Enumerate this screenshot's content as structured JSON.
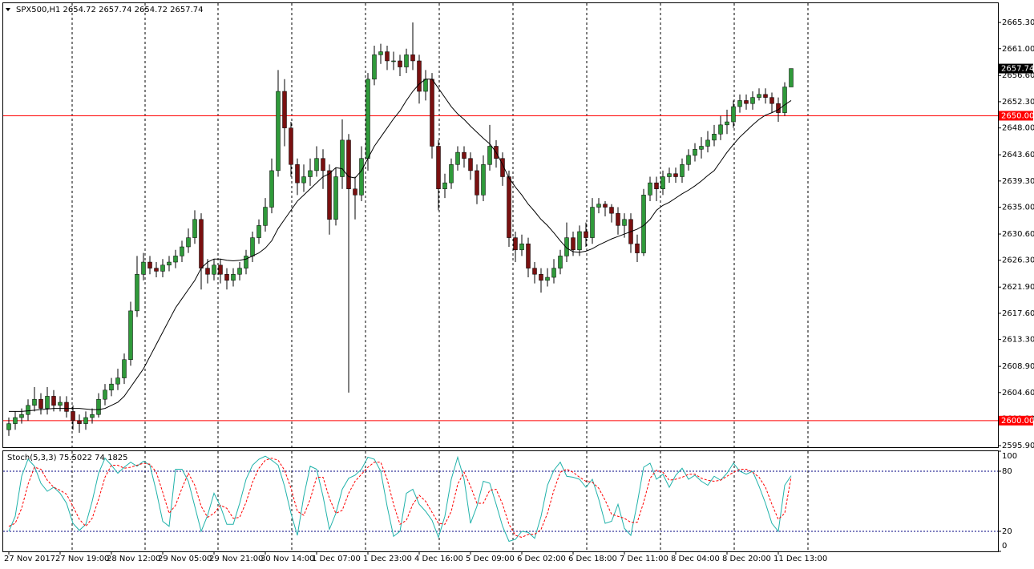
{
  "chart_data": [
    {
      "type": "candlestick",
      "title": "SPX500,H1  2654.72 2657.74 2654.72 2657.74",
      "categories": [
        "27 Nov 2017",
        null,
        null,
        null,
        null,
        null,
        null,
        null,
        "27 Nov 19:00",
        null,
        null,
        null,
        null,
        null,
        null,
        null,
        "28 Nov 12:00",
        null,
        null,
        null,
        null,
        null,
        null,
        null,
        "29 Nov 05:00",
        null,
        null,
        null,
        null,
        null,
        null,
        null,
        "29 Nov 21:00",
        null,
        null,
        null,
        null,
        null,
        null,
        null,
        "30 Nov 14:00",
        null,
        null,
        null,
        null,
        null,
        null,
        null,
        "1 Dec 07:00",
        null,
        null,
        null,
        null,
        null,
        null,
        null,
        "1 Dec 23:00",
        null,
        null,
        null,
        null,
        null,
        null,
        null,
        "4 Dec 16:00",
        null,
        null,
        null,
        null,
        null,
        null,
        null,
        "5 Dec 09:00",
        null,
        null,
        null,
        null,
        null,
        null,
        null,
        "6 Dec 02:00",
        null,
        null,
        null,
        null,
        null,
        null,
        null,
        "6 Dec 18:00",
        null,
        null,
        null,
        null,
        null,
        null,
        null,
        "7 Dec 11:00",
        null,
        null,
        null,
        null,
        null,
        null,
        null,
        "8 Dec 04:00",
        null,
        null,
        null,
        null,
        null,
        null,
        null,
        "8 Dec 20:00",
        null,
        null,
        null,
        null,
        null,
        null,
        null,
        "11 Dec 13:00",
        null,
        null
      ],
      "open": [
        2598.5,
        2599.5,
        2600.5,
        2601,
        2602.5,
        2603.5,
        2602,
        2604,
        2602.5,
        2603,
        2601.5,
        2600,
        2599.5,
        2600.5,
        2601,
        2603.5,
        2605,
        2606,
        2607,
        2610,
        2618,
        2624,
        2626,
        2625,
        2624.5,
        2625.5,
        2626,
        2627,
        2628.5,
        2630,
        2633,
        2625,
        2624,
        2625.5,
        2624,
        2623,
        2624,
        2625,
        2627,
        2630,
        2632,
        2635,
        2641,
        2654,
        2648,
        2642,
        2639,
        2640,
        2641,
        2643,
        2641,
        2633,
        2640,
        2646,
        2638,
        2637,
        2643,
        2656,
        2660,
        2660.5,
        2659,
        2659,
        2658,
        2660,
        2659,
        2654,
        2656,
        2645,
        2638,
        2639,
        2642,
        2644,
        2643,
        2641,
        2637,
        2642,
        2645,
        2643,
        2640,
        2630,
        2628,
        2629,
        2625,
        2624,
        2623,
        2623.5,
        2625,
        2627,
        2630,
        2628,
        2631,
        2630,
        2635,
        2635.5,
        2635,
        2634,
        2632,
        2633,
        2629,
        2627.5,
        2637,
        2639,
        2638,
        2640,
        2640.5,
        2640,
        2642,
        2643.5,
        2644.5,
        2645,
        2646,
        2647,
        2648.5,
        2649,
        2651.5,
        2652.5,
        2652,
        2653,
        2653.5,
        2653,
        2652,
        2650.5,
        2654.72
      ],
      "high": [
        2600.5,
        2601.5,
        2602,
        2603.5,
        2605.5,
        2604.5,
        2605.5,
        2605,
        2604,
        2604,
        2602.5,
        2601,
        2601.5,
        2602,
        2604.5,
        2606,
        2607,
        2608.5,
        2611,
        2619.5,
        2627,
        2627.5,
        2627,
        2626,
        2626.5,
        2627,
        2628,
        2629.5,
        2631.5,
        2634.5,
        2634,
        2626.5,
        2626.5,
        2626.5,
        2625,
        2625,
        2626,
        2628,
        2631,
        2633,
        2636.5,
        2643,
        2657.5,
        2656,
        2649,
        2643,
        2642,
        2643,
        2645,
        2644.5,
        2642,
        2641.5,
        2649.4,
        2647,
        2640,
        2645,
        2657,
        2661.5,
        2661.8,
        2661.5,
        2660.5,
        2660,
        2661,
        2665.3,
        2660,
        2657.5,
        2657,
        2646,
        2640.5,
        2643,
        2645,
        2645,
        2644,
        2642,
        2643.5,
        2648.5,
        2646,
        2644,
        2641,
        2631,
        2630.5,
        2630,
        2626,
        2625,
        2625,
        2626.5,
        2628,
        2632.5,
        2631,
        2632,
        2632.5,
        2636.5,
        2636.5,
        2636,
        2635.5,
        2635,
        2634,
        2634,
        2630.5,
        2638,
        2640,
        2640,
        2641,
        2641.5,
        2641.5,
        2643,
        2644.5,
        2645.5,
        2646.5,
        2647.5,
        2648.5,
        2650,
        2651,
        2652.5,
        2653.5,
        2653.5,
        2654,
        2654.5,
        2654.5,
        2653.8,
        2653,
        2655.5,
        2657.74
      ],
      "low": [
        2597.5,
        2598.5,
        2599.5,
        2600,
        2601.5,
        2601,
        2601,
        2601.5,
        2601.5,
        2600.5,
        2598.5,
        2598,
        2598.5,
        2599.5,
        2600.5,
        2602.5,
        2604,
        2605,
        2606,
        2609,
        2617,
        2623,
        2624,
        2623.5,
        2623.5,
        2624.5,
        2625,
        2626,
        2627.5,
        2629,
        2621.5,
        2622.5,
        2623,
        2622.5,
        2621.5,
        2622,
        2623,
        2624,
        2626,
        2629,
        2631,
        2634,
        2640,
        2645,
        2640,
        2637,
        2637.5,
        2638.5,
        2640,
        2638,
        2630.5,
        2632,
        2638,
        2604.6,
        2633,
        2636,
        2641,
        2655,
        2658.5,
        2657.5,
        2657.5,
        2656.5,
        2657,
        2657.5,
        2652,
        2652.5,
        2643,
        2634.5,
        2636.5,
        2638,
        2641,
        2641.5,
        2639.5,
        2635.5,
        2636,
        2641,
        2641.5,
        2638.5,
        2628.5,
        2626,
        2627,
        2623.5,
        2622.5,
        2621,
        2622,
        2622.5,
        2624,
        2626,
        2627,
        2627,
        2628.5,
        2629,
        2634,
        2633.5,
        2632.5,
        2630.5,
        2630,
        2627.5,
        2626,
        2627,
        2636,
        2636,
        2637,
        2639,
        2639,
        2639,
        2641,
        2642.5,
        2643,
        2644,
        2645,
        2646,
        2647,
        2648,
        2650.5,
        2651,
        2651,
        2652.5,
        2652,
        2650.5,
        2649,
        2650,
        2654.72
      ],
      "close": [
        2599.5,
        2600.5,
        2601,
        2602.5,
        2603.5,
        2602,
        2604,
        2602.5,
        2603,
        2601.5,
        2600,
        2599.5,
        2600.5,
        2601,
        2603.5,
        2605,
        2606,
        2607,
        2610,
        2618,
        2624,
        2626,
        2625,
        2624.5,
        2625.5,
        2626,
        2627,
        2628.5,
        2630,
        2633,
        2625,
        2624,
        2625.5,
        2624,
        2623,
        2624,
        2625,
        2627,
        2630,
        2632,
        2635,
        2641,
        2654,
        2648,
        2642,
        2639,
        2640,
        2641,
        2643,
        2641,
        2633,
        2640,
        2646,
        2638,
        2637,
        2643,
        2656,
        2660,
        2660.5,
        2659,
        2659,
        2658,
        2660,
        2659,
        2654,
        2656,
        2645,
        2638,
        2639,
        2642,
        2644,
        2643,
        2641,
        2637,
        2642,
        2645,
        2643,
        2640,
        2630,
        2628,
        2629,
        2625,
        2624,
        2623,
        2623.5,
        2625,
        2627,
        2630,
        2628,
        2631,
        2630,
        2635,
        2635.5,
        2635,
        2634,
        2632,
        2633,
        2629,
        2627.5,
        2637,
        2639,
        2638,
        2640,
        2640.5,
        2640,
        2642,
        2643.5,
        2644.5,
        2645,
        2646,
        2647,
        2648.5,
        2649,
        2651.5,
        2652.5,
        2652,
        2653,
        2653.5,
        2653,
        2652,
        2650.5,
        2654.72,
        2657.74
      ],
      "up_color": "#2f9a3a",
      "down_color": "#7a1010",
      "wick_color": "#000000",
      "overlay": {
        "color": "#000000",
        "values": [
          2601.5,
          2601.5,
          2601.5,
          2601.6,
          2601.7,
          2601.8,
          2601.9,
          2602,
          2602,
          2602,
          2602,
          2602,
          2601.9,
          2601.8,
          2601.8,
          2602,
          2602.5,
          2603,
          2604,
          2605.5,
          2607,
          2608.5,
          2610.5,
          2612.5,
          2614.5,
          2616.5,
          2618.5,
          2620,
          2621.5,
          2623,
          2625,
          2626,
          2626.5,
          2626.5,
          2626.3,
          2626.2,
          2626.3,
          2626.5,
          2627,
          2627.5,
          2628.3,
          2629.5,
          2631.5,
          2633,
          2634.5,
          2636,
          2637,
          2638,
          2639,
          2640,
          2640.5,
          2641.5,
          2641.3,
          2640,
          2639.8,
          2641,
          2643,
          2645,
          2646.5,
          2648,
          2649.5,
          2650.8,
          2652.5,
          2654,
          2655.2,
          2656,
          2656,
          2654.5,
          2653,
          2651.5,
          2650.3,
          2649.4,
          2648.3,
          2647.3,
          2646.3,
          2645.4,
          2644,
          2642,
          2639.8,
          2638.3,
          2637,
          2635.5,
          2634.3,
          2633,
          2632,
          2630.8,
          2629.5,
          2628.3,
          2627.7,
          2627.6,
          2627.8,
          2628.2,
          2628.8,
          2629.3,
          2629.8,
          2630.2,
          2630.6,
          2631,
          2631.4,
          2632,
          2633,
          2634.5,
          2635.3,
          2635.8,
          2636.5,
          2637.2,
          2637.8,
          2638.5,
          2639.3,
          2640.2,
          2641,
          2642.5,
          2644,
          2645.3,
          2646.5,
          2647.5,
          2648.5,
          2649.4,
          2650.1,
          2650.5,
          2651,
          2651.8,
          2652.5
        ]
      },
      "hlines": [
        {
          "value": 2650,
          "label": "2650.00",
          "color": "#ff0000"
        },
        {
          "value": 2600,
          "label": "2600.00",
          "color": "#ff0000"
        }
      ],
      "last_price": {
        "value": 2657.74,
        "label": "2657.74"
      },
      "ylim": [
        2595.64,
        2668.46
      ],
      "yticks": [
        {
          "value": 2665.3,
          "label": "2665.30"
        },
        {
          "value": 2661,
          "label": "2661.00"
        },
        {
          "value": 2656.6,
          "label": "2656.60"
        },
        {
          "value": 2652.3,
          "label": "2652.30"
        },
        {
          "value": 2648,
          "label": "2648.00"
        },
        {
          "value": 2643.6,
          "label": "2643.60"
        },
        {
          "value": 2639.3,
          "label": "2639.30"
        },
        {
          "value": 2635,
          "label": "2635.00"
        },
        {
          "value": 2630.6,
          "label": "2630.60"
        },
        {
          "value": 2626.3,
          "label": "2626.30"
        },
        {
          "value": 2621.9,
          "label": "2621.90"
        },
        {
          "value": 2617.6,
          "label": "2617.60"
        },
        {
          "value": 2613.3,
          "label": "2613.30"
        },
        {
          "value": 2608.9,
          "label": "2608.90"
        },
        {
          "value": 2604.6,
          "label": "2604.60"
        },
        {
          "value": 2600.3,
          "label": "2600.30"
        },
        {
          "value": 2595.9,
          "label": "2595.90"
        }
      ]
    },
    {
      "type": "line",
      "title": "Stoch(5,3,3) 75.5022 74.1825",
      "series": [
        {
          "color": "#20b2aa",
          "style": "solid",
          "values": [
            20,
            35,
            75,
            92,
            85,
            68,
            60,
            64,
            58,
            48,
            28,
            21,
            27,
            50,
            78,
            93,
            86,
            78,
            84,
            89,
            85,
            90,
            86,
            60,
            30,
            25,
            82,
            82,
            70,
            45,
            20,
            36,
            58,
            45,
            27,
            27,
            48,
            72,
            86,
            92,
            95,
            91,
            86,
            65,
            38,
            16,
            55,
            85,
            82,
            55,
            22,
            38,
            62,
            73,
            76,
            82,
            94,
            92,
            80,
            45,
            15,
            20,
            58,
            62,
            47,
            40,
            31,
            14,
            35,
            72,
            94,
            72,
            28,
            45,
            70,
            68,
            47,
            25,
            10,
            12,
            20,
            19,
            13,
            35,
            66,
            81,
            89,
            75,
            74,
            72,
            64,
            72,
            52,
            28,
            30,
            47,
            23,
            16,
            48,
            84,
            88,
            72,
            77,
            64,
            76,
            83,
            72,
            76,
            70,
            66,
            75,
            71,
            78,
            88,
            80,
            77,
            80,
            65,
            48,
            28,
            20,
            66,
            75.5022
          ]
        },
        {
          "color": "#ff0000",
          "style": "dashed",
          "values": [
            25,
            28,
            43,
            67,
            84,
            82,
            71,
            64,
            61,
            57,
            45,
            32,
            25,
            33,
            52,
            74,
            86,
            86,
            83,
            84,
            86,
            88,
            87,
            79,
            59,
            38,
            46,
            63,
            78,
            66,
            45,
            34,
            38,
            46,
            43,
            33,
            34,
            49,
            69,
            83,
            91,
            93,
            91,
            81,
            63,
            40,
            36,
            52,
            74,
            74,
            53,
            38,
            41,
            58,
            70,
            77,
            84,
            89,
            89,
            72,
            47,
            27,
            31,
            47,
            56,
            50,
            39,
            28,
            27,
            40,
            67,
            79,
            65,
            48,
            48,
            61,
            62,
            47,
            27,
            16,
            14,
            17,
            17,
            22,
            38,
            61,
            79,
            82,
            79,
            74,
            70,
            69,
            63,
            51,
            37,
            35,
            33,
            29,
            29,
            49,
            73,
            81,
            79,
            71,
            72,
            74,
            77,
            77,
            73,
            71,
            70,
            71,
            75,
            79,
            82,
            82,
            79,
            74,
            64,
            47,
            32,
            38,
            74.1825
          ]
        }
      ],
      "levels": [
        20,
        80
      ],
      "level_color": "#000080",
      "ylim": [
        0,
        100
      ],
      "yticks": [
        0,
        20,
        80,
        100
      ]
    }
  ]
}
